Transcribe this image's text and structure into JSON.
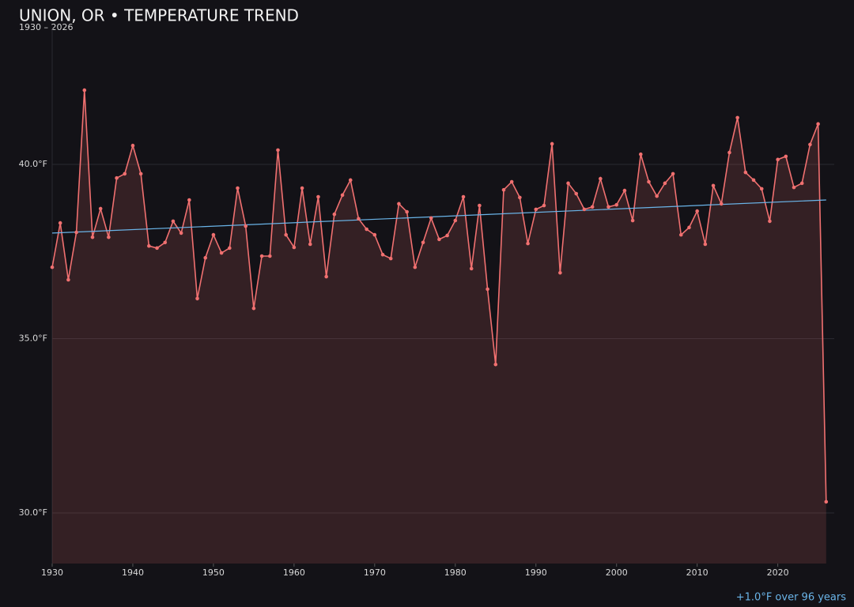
{
  "chart_data": {
    "type": "line",
    "title": "UNION, OR • TEMPERATURE TREND",
    "subtitle": "1930 – 2026",
    "annotation": "+1.0°F over 96 years",
    "x": [
      1930,
      1931,
      1932,
      1933,
      1934,
      1935,
      1936,
      1937,
      1938,
      1939,
      1940,
      1941,
      1942,
      1943,
      1944,
      1945,
      1946,
      1947,
      1948,
      1949,
      1950,
      1951,
      1952,
      1953,
      1954,
      1955,
      1956,
      1957,
      1958,
      1959,
      1960,
      1961,
      1962,
      1963,
      1964,
      1965,
      1966,
      1967,
      1968,
      1969,
      1970,
      1971,
      1972,
      1973,
      1974,
      1975,
      1976,
      1977,
      1978,
      1979,
      1980,
      1981,
      1982,
      1983,
      1984,
      1985,
      1986,
      1987,
      1988,
      1989,
      1990,
      1991,
      1992,
      1993,
      1994,
      1995,
      1996,
      1997,
      1998,
      1999,
      2000,
      2001,
      2002,
      2003,
      2004,
      2005,
      2006,
      2007,
      2008,
      2009,
      2010,
      2011,
      2012,
      2013,
      2014,
      2015,
      2016,
      2017,
      2018,
      2019,
      2020,
      2021,
      2022,
      2023,
      2024,
      2025,
      2026
    ],
    "series": [
      {
        "color": "#f07070",
        "values": [
          37.05,
          38.32,
          36.69,
          38.05,
          42.13,
          37.91,
          38.73,
          37.91,
          39.61,
          39.73,
          40.54,
          39.73,
          37.66,
          37.6,
          37.76,
          38.37,
          38.03,
          38.98,
          36.15,
          37.32,
          37.98,
          37.46,
          37.6,
          39.32,
          38.23,
          35.87,
          37.37,
          37.37,
          40.41,
          37.98,
          37.62,
          39.32,
          37.71,
          39.07,
          36.78,
          38.57,
          39.12,
          39.55,
          38.44,
          38.14,
          37.98,
          37.41,
          37.3,
          38.87,
          38.64,
          37.05,
          37.76,
          38.46,
          37.85,
          37.96,
          38.39,
          39.07,
          37.01,
          38.82,
          36.42,
          34.26,
          39.27,
          39.5,
          39.05,
          37.73,
          38.71,
          38.82,
          40.59,
          36.89,
          39.46,
          39.16,
          38.71,
          38.78,
          39.59,
          38.78,
          38.84,
          39.25,
          38.39,
          40.29,
          39.5,
          39.09,
          39.46,
          39.73,
          37.98,
          38.19,
          38.66,
          37.71,
          39.39,
          38.87,
          40.34,
          41.34,
          39.77,
          39.55,
          39.3,
          38.37,
          40.14,
          40.23,
          39.34,
          39.46,
          40.57,
          41.16,
          30.32
        ]
      }
    ],
    "trend": {
      "color": "#6ab4e8",
      "x": [
        1930,
        2026
      ],
      "values": [
        38.03,
        38.98
      ]
    },
    "xlim": [
      1930,
      2027
    ],
    "ylim": [
      28.55,
      43.9
    ],
    "xticks": [
      1930,
      1940,
      1950,
      1960,
      1970,
      1980,
      1990,
      2000,
      2010,
      2020
    ],
    "yticks": [
      {
        "value": 30,
        "label": "30.0°F"
      },
      {
        "value": 35,
        "label": "35.0°F"
      },
      {
        "value": 40,
        "label": "40.0°F"
      }
    ],
    "grid": true
  }
}
